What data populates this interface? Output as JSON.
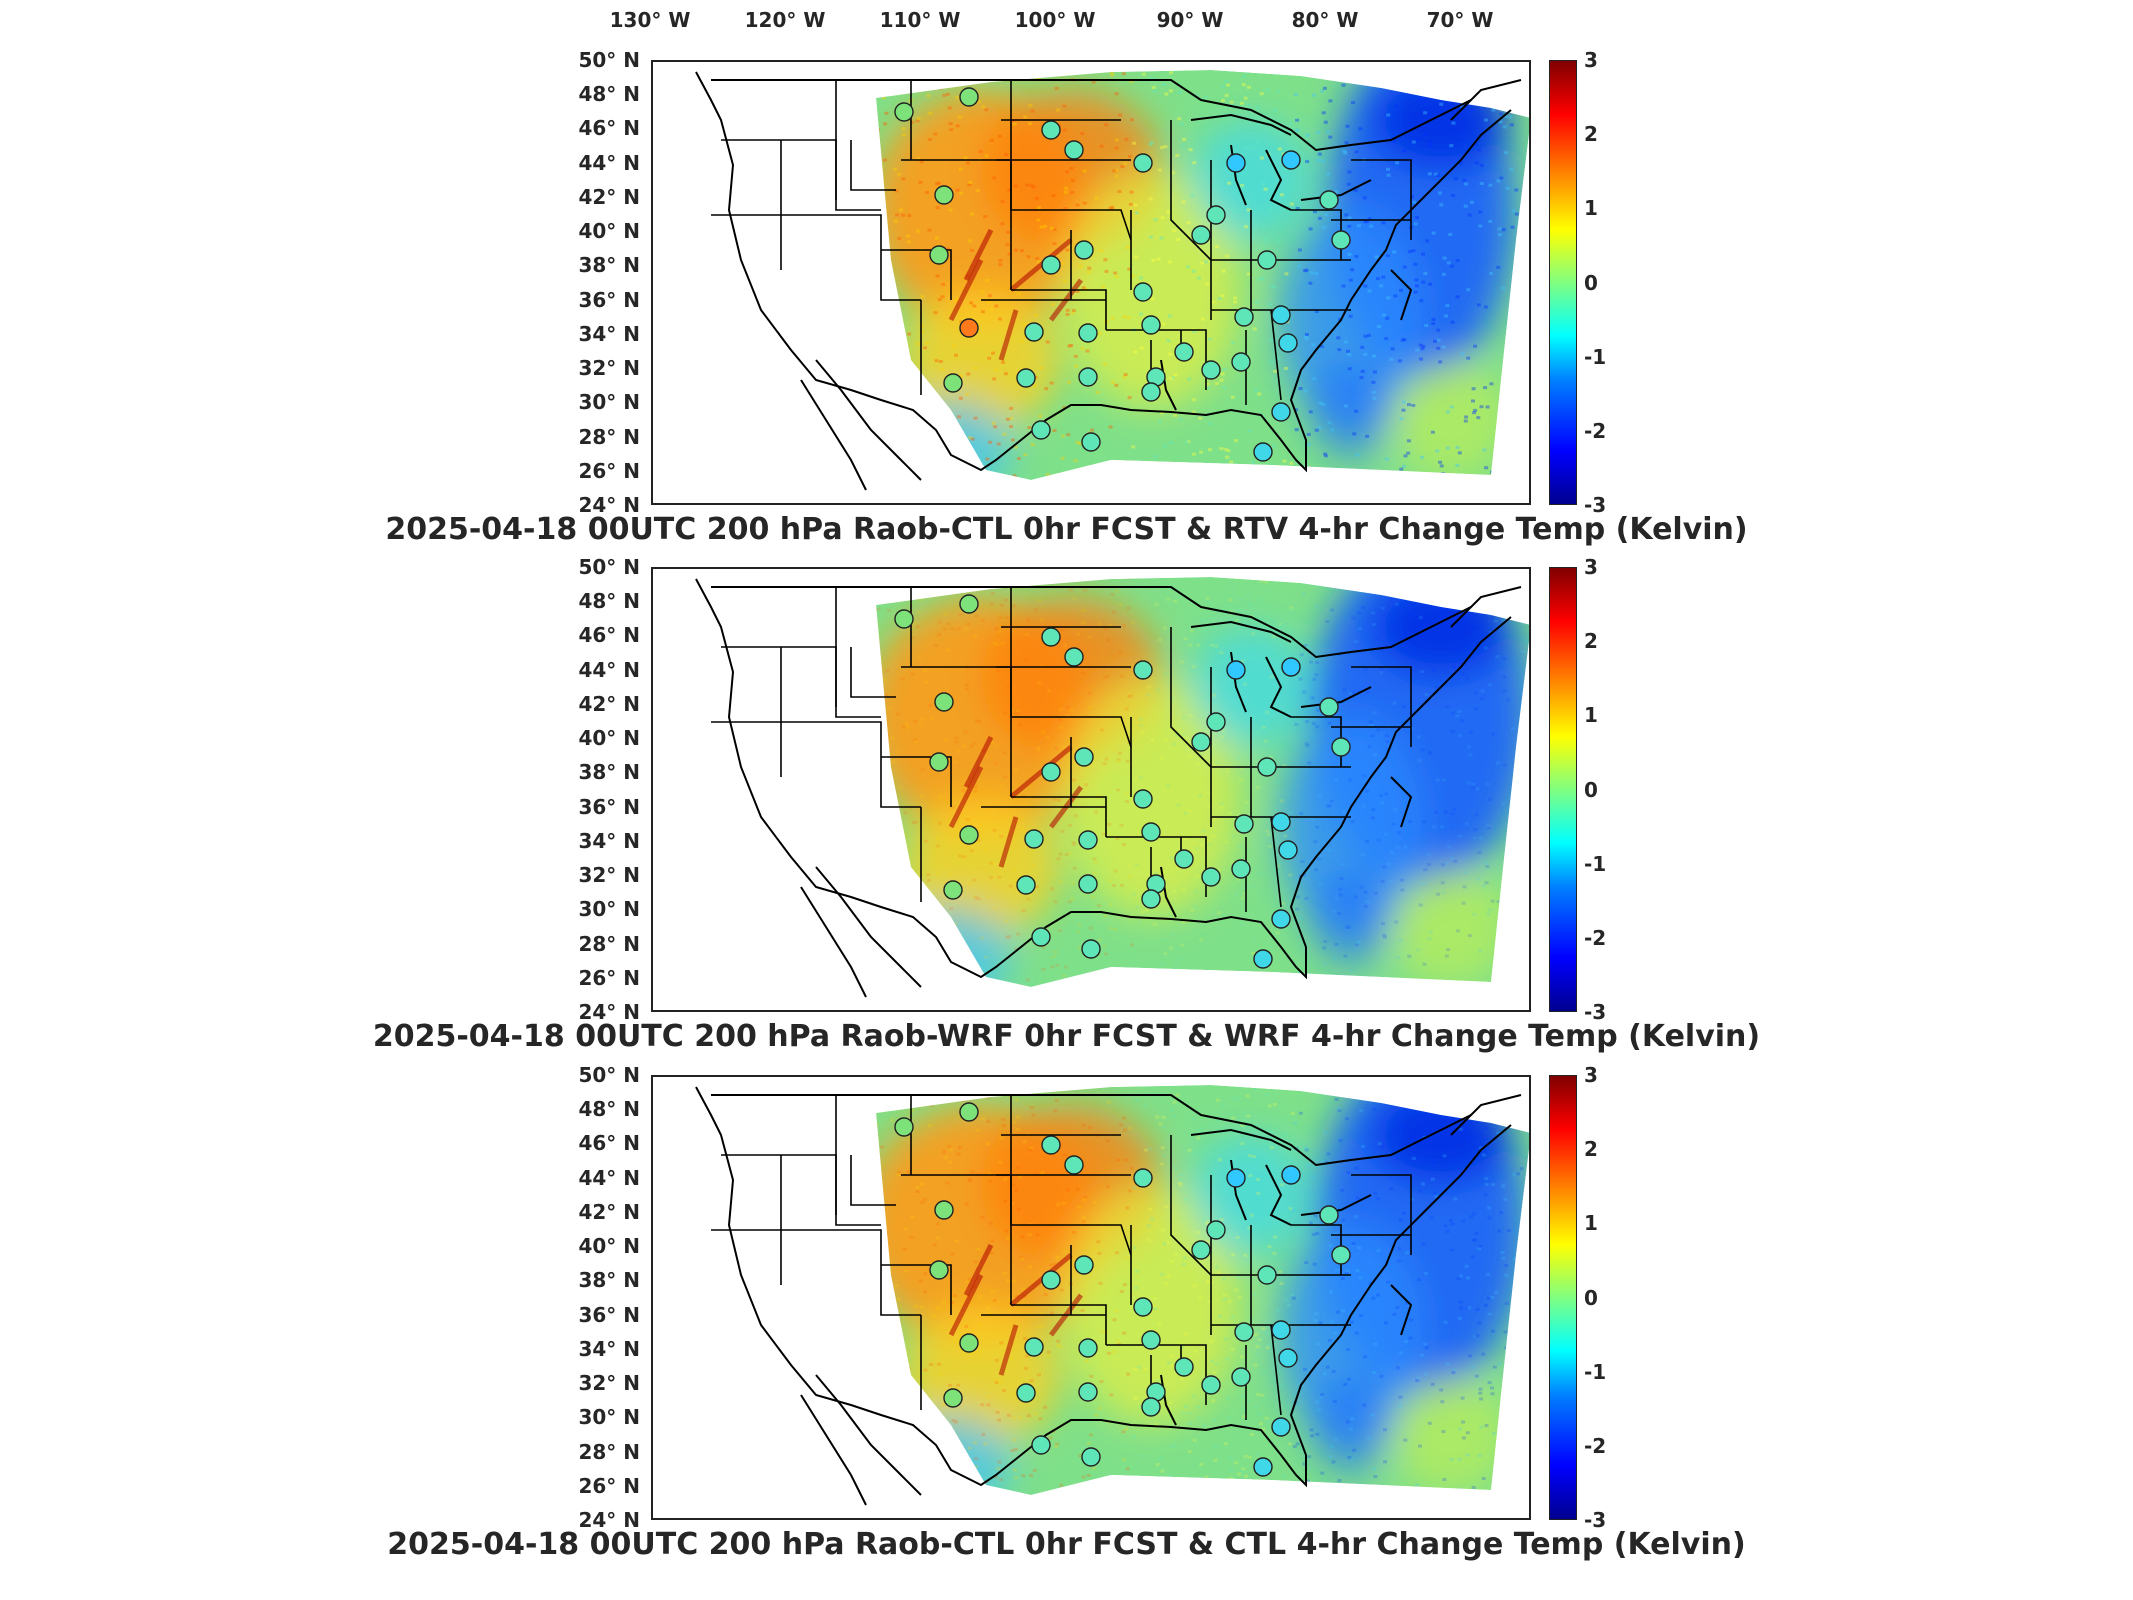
{
  "longitude_labels": [
    "130° W",
    "120° W",
    "110° W",
    "100° W",
    "90° W",
    "80° W",
    "70° W"
  ],
  "latitude_labels": [
    "50° N",
    "48° N",
    "46° N",
    "44° N",
    "42° N",
    "40° N",
    "38° N",
    "36° N",
    "34° N",
    "32° N",
    "30° N",
    "28° N",
    "26° N",
    "24° N"
  ],
  "colorbar": {
    "ticks": [
      "3",
      "2",
      "1",
      "0",
      "-1",
      "-2",
      "-3"
    ],
    "colors": [
      "#800000",
      "#ff0000",
      "#ff8000",
      "#ffff00",
      "#80ff80",
      "#00ffff",
      "#0080ff",
      "#0000ff",
      "#00008f"
    ]
  },
  "panels": [
    {
      "title": "2025-04-18 00UTC 200 hPa Raob-CTL 0hr FCST & RTV 4-hr Change Temp (Kelvin)",
      "variant": "rtv"
    },
    {
      "title": "2025-04-18 00UTC 200 hPa Raob-WRF 0hr FCST & WRF 4-hr Change Temp (Kelvin)",
      "variant": "wrf"
    },
    {
      "title": "2025-04-18 00UTC 200 hPa Raob-CTL 0hr FCST & CTL 4-hr Change Temp (Kelvin)",
      "variant": "ctl"
    }
  ],
  "station_markers": [
    "raob-station"
  ]
}
